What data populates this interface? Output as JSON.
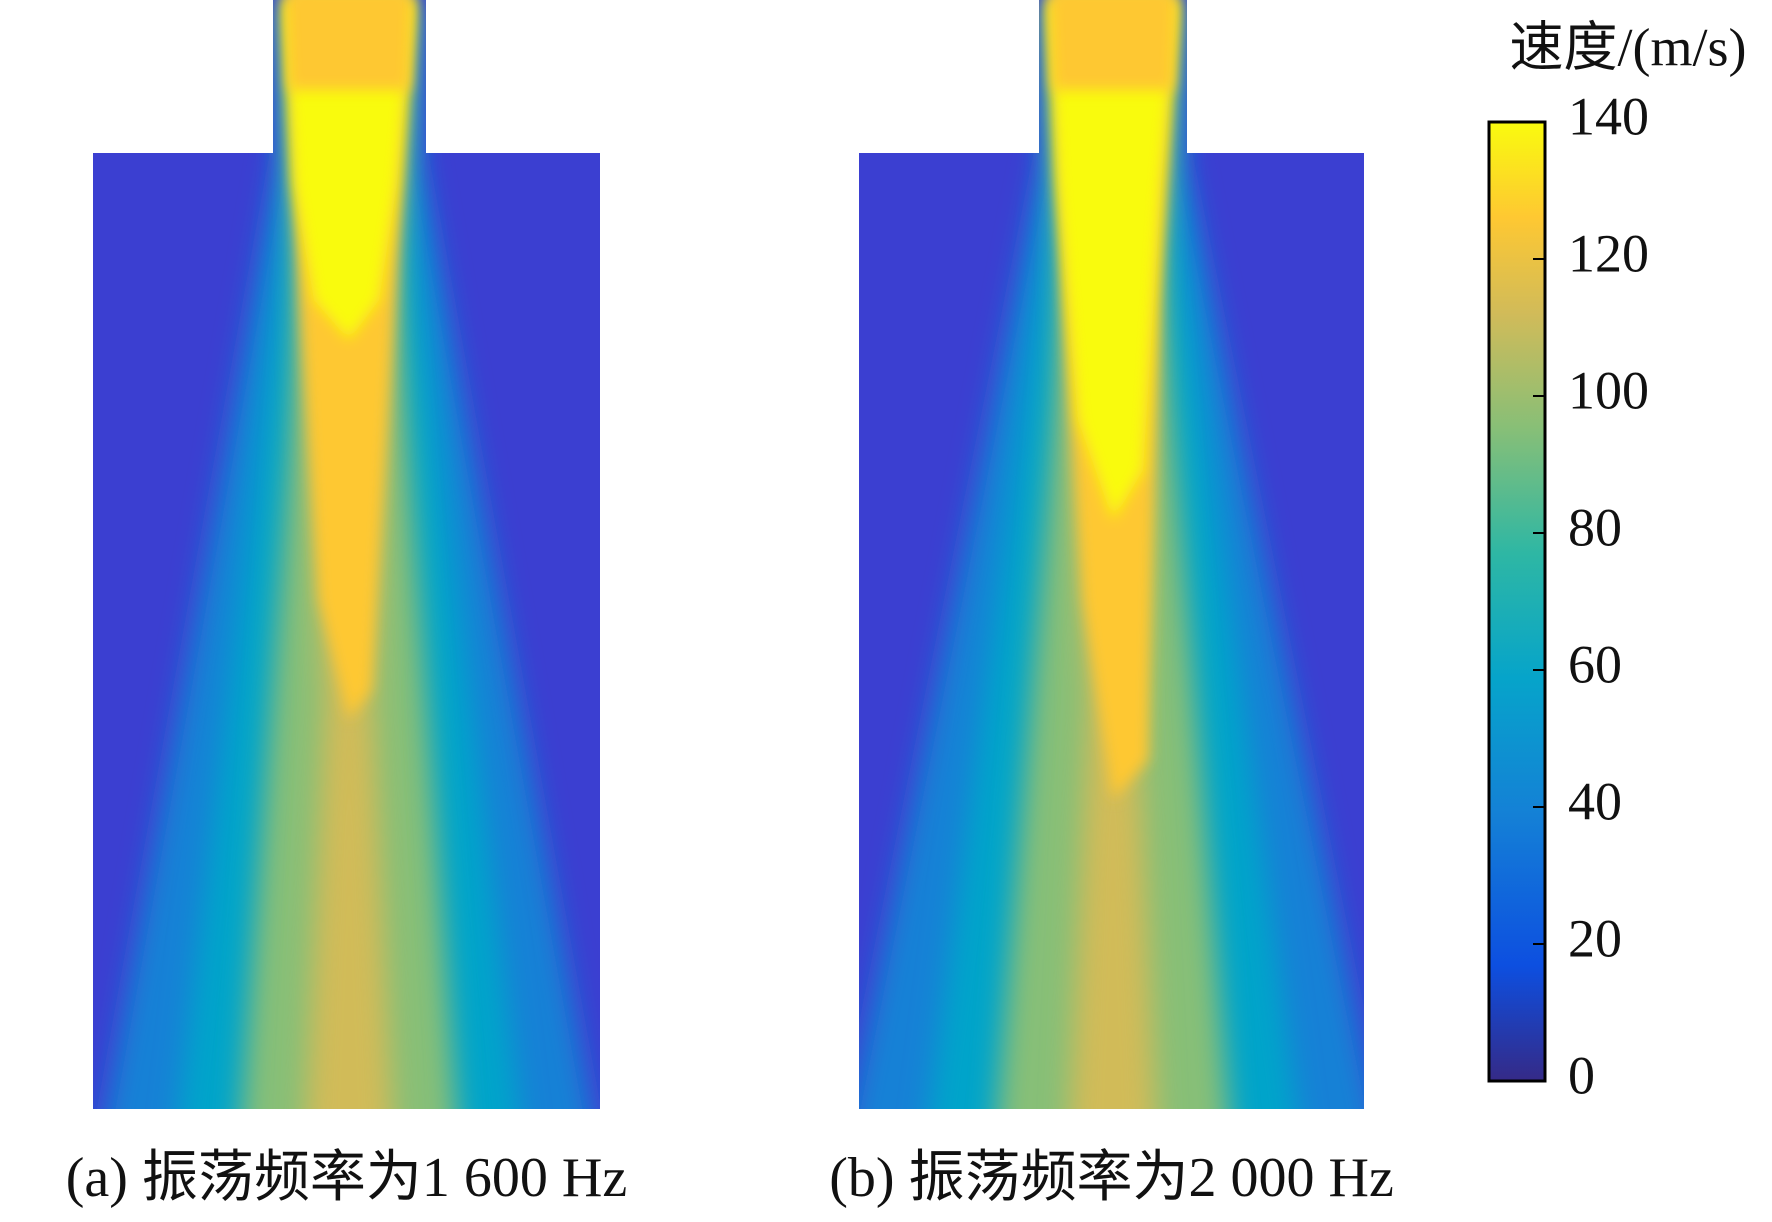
{
  "chart_data": {
    "type": "contour",
    "colorbar_label": "速度/(m/s)",
    "clim": [
      0,
      140
    ],
    "ticks": [
      0,
      20,
      40,
      60,
      80,
      100,
      120,
      140
    ],
    "colormap": "parula",
    "panels": [
      {
        "caption": "(a) 振荡频率为1 600 Hz"
      },
      {
        "caption": "(b) 振荡频率为2 000 Hz"
      }
    ]
  }
}
